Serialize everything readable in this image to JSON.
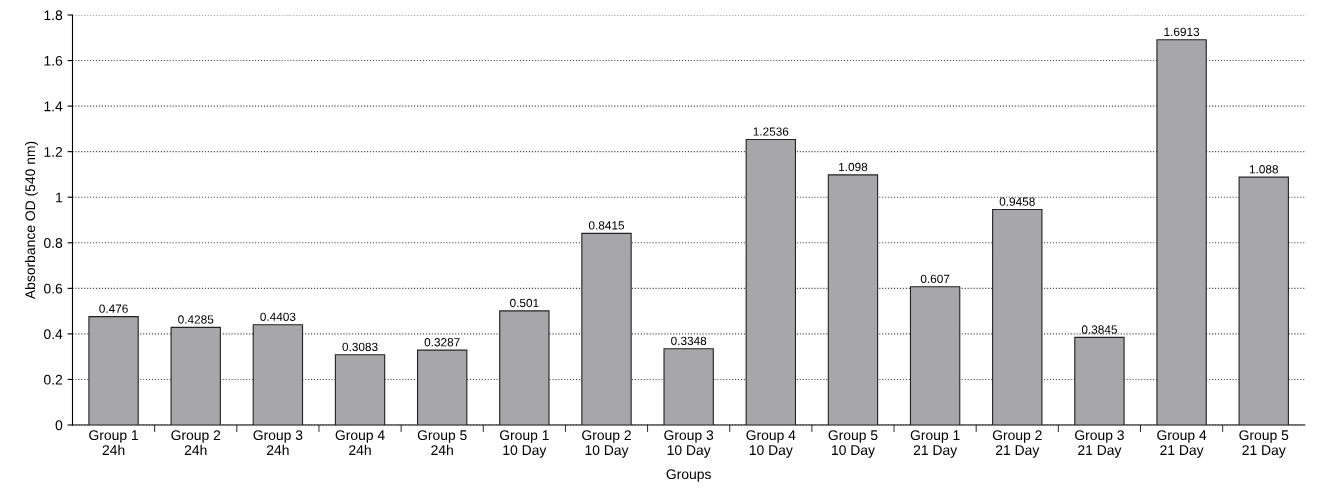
{
  "chart_data": {
    "type": "bar",
    "xlabel": "Groups",
    "ylabel": "Absorbance OD (540 nm)",
    "categories": [
      "Group 1\n24h",
      "Group 2\n24h",
      "Group 3\n24h",
      "Group 4\n24h",
      "Group 5\n24h",
      "Group 1\n10 Day",
      "Group 2\n10 Day",
      "Group 3\n10 Day",
      "Group 4\n10 Day",
      "Group 5\n10 Day",
      "Group 1\n21 Day",
      "Group 2\n21 Day",
      "Group 3\n21 Day",
      "Group 4\n21 Day",
      "Group 5\n21 Day"
    ],
    "values": [
      0.476,
      0.4285,
      0.4403,
      0.3083,
      0.3287,
      0.501,
      0.8415,
      0.3348,
      1.2536,
      1.098,
      0.607,
      0.9458,
      0.3845,
      1.6913,
      1.088
    ],
    "color": "#a7a7aa",
    "ylim": [
      0,
      1.8
    ],
    "yticks": [
      0,
      0.2,
      0.4,
      0.6,
      0.8,
      1,
      1.2,
      1.4,
      1.6,
      1.8
    ],
    "grid": "y",
    "data_labels": true
  }
}
